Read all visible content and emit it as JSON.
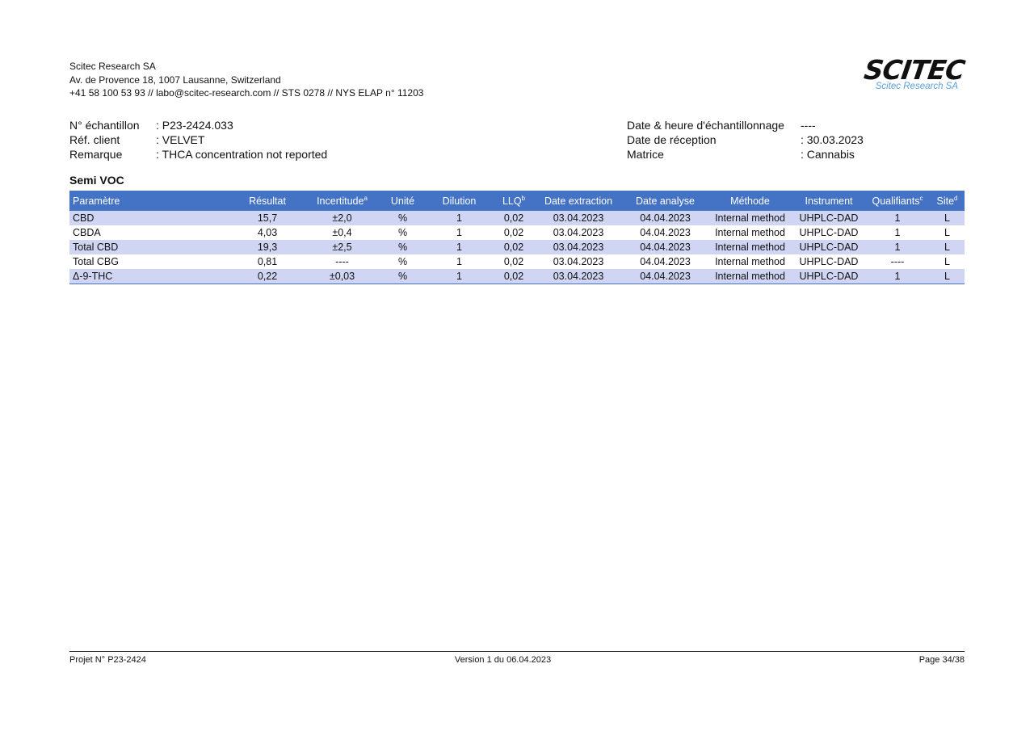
{
  "company": {
    "name": "Scitec Research SA",
    "address": "Av. de Provence 18, 1007 Lausanne, Switzerland",
    "contact": "+41 58 100 53 93 // labo@scitec-research.com // STS 0278 // NYS ELAP n° 11203"
  },
  "logo": {
    "mark": "SCITEC",
    "subtitle": "Scitec Research SA"
  },
  "sample_left": [
    {
      "label": "N° échantillon",
      "value": ": P23-2424.033"
    },
    {
      "label": "Réf. client",
      "value": ": VELVET"
    },
    {
      "label": "Remarque",
      "value": ": THCA concentration not reported"
    }
  ],
  "sample_right": [
    {
      "label": "Date & heure d'échantillonnage",
      "value": "----"
    },
    {
      "label": "Date de réception",
      "value": ": 30.03.2023"
    },
    {
      "label": "Matrice",
      "value": ": Cannabis"
    }
  ],
  "section_title": "Semi VOC",
  "table": {
    "headers": [
      "Paramètre",
      "Résultat",
      "Incertitude",
      "Unité",
      "Dilution",
      "LLQ",
      "Date extraction",
      "Date analyse",
      "Méthode",
      "Instrument",
      "Qualifiants",
      "Site"
    ],
    "header_sups": [
      "",
      "",
      "a",
      "",
      "",
      "b",
      "",
      "",
      "",
      "",
      "c",
      "d"
    ],
    "rows": [
      [
        "CBD",
        "15,7",
        "±2,0",
        "%",
        "1",
        "0,02",
        "03.04.2023",
        "04.04.2023",
        "Internal method",
        "UHPLC-DAD",
        "1",
        "L"
      ],
      [
        "CBDA",
        "4,03",
        "±0,4",
        "%",
        "1",
        "0,02",
        "03.04.2023",
        "04.04.2023",
        "Internal method",
        "UHPLC-DAD",
        "1",
        "L"
      ],
      [
        "Total CBD",
        "19,3",
        "±2,5",
        "%",
        "1",
        "0,02",
        "03.04.2023",
        "04.04.2023",
        "Internal method",
        "UHPLC-DAD",
        "1",
        "L"
      ],
      [
        "Total CBG",
        "0,81",
        "----",
        "%",
        "1",
        "0,02",
        "03.04.2023",
        "04.04.2023",
        "Internal method",
        "UHPLC-DAD",
        "----",
        "L"
      ],
      [
        "Δ-9-THC",
        "0,22",
        "±0,03",
        "%",
        "1",
        "0,02",
        "03.04.2023",
        "04.04.2023",
        "Internal method",
        "UHPLC-DAD",
        "1",
        "L"
      ]
    ]
  },
  "footer": {
    "project": "Projet N° P23-2424",
    "version": "Version 1 du 06.04.2023",
    "page": "Page 34/38"
  }
}
